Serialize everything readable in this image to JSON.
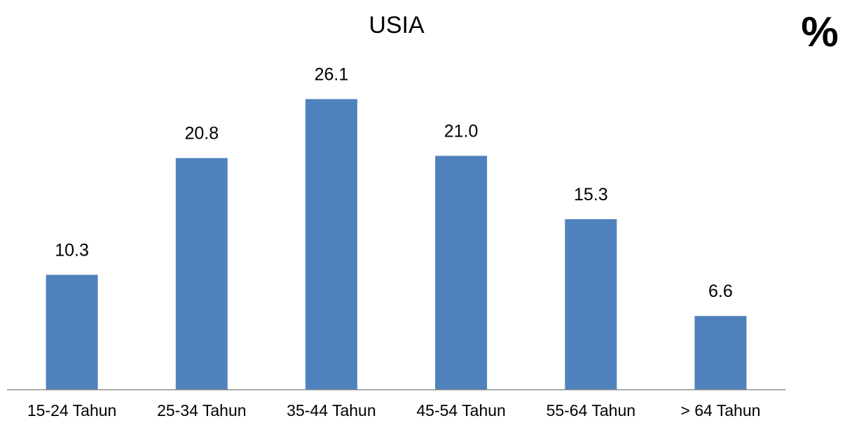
{
  "unit_symbol": "%",
  "colors": {
    "bar": "#4f81bd",
    "axis": "#8c8c8c"
  },
  "chart_data": {
    "type": "bar",
    "title": "USIA",
    "xlabel": "",
    "ylabel": "",
    "categories": [
      "15-24 Tahun",
      "25-34 Tahun",
      "35-44 Tahun",
      "45-54 Tahun",
      "55-64 Tahun",
      "> 64 Tahun"
    ],
    "values": [
      10.3,
      20.8,
      26.1,
      21.0,
      15.3,
      6.6
    ],
    "data_labels": [
      "10.3",
      "20.8",
      "26.1",
      "21.0",
      "15.3",
      "6.6"
    ],
    "ylim": [
      0,
      28
    ],
    "grid": false,
    "legend": "none"
  }
}
